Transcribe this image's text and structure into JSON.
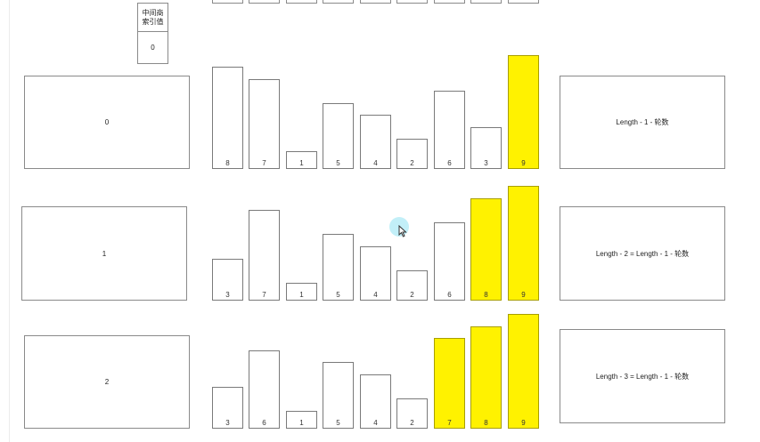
{
  "top_stub_count": 9,
  "mid_index": {
    "label": "中间商\n索引值",
    "value": "0"
  },
  "rows": [
    {
      "round": "0",
      "formula": "Length - 1 - 轮数",
      "bars": [
        {
          "value": 8,
          "label": "8",
          "highlighted": false
        },
        {
          "value": 7,
          "label": "7",
          "highlighted": false
        },
        {
          "value": 1,
          "label": "1",
          "highlighted": false
        },
        {
          "value": 5,
          "label": "5",
          "highlighted": false
        },
        {
          "value": 4,
          "label": "4",
          "highlighted": false
        },
        {
          "value": 2,
          "label": "2",
          "highlighted": false
        },
        {
          "value": 6,
          "label": "6",
          "highlighted": false
        },
        {
          "value": 3,
          "label": "3",
          "highlighted": false
        },
        {
          "value": 9,
          "label": "9",
          "highlighted": true
        }
      ]
    },
    {
      "round": "1",
      "formula": "Length - 2 = Length - 1 - 轮数",
      "bars": [
        {
          "value": 3,
          "label": "3",
          "highlighted": false
        },
        {
          "value": 7,
          "label": "7",
          "highlighted": false
        },
        {
          "value": 1,
          "label": "1",
          "highlighted": false
        },
        {
          "value": 5,
          "label": "5",
          "highlighted": false
        },
        {
          "value": 4,
          "label": "4",
          "highlighted": false
        },
        {
          "value": 2,
          "label": "2",
          "highlighted": false
        },
        {
          "value": 6,
          "label": "6",
          "highlighted": false
        },
        {
          "value": 8,
          "label": "8",
          "highlighted": true
        },
        {
          "value": 9,
          "label": "9",
          "highlighted": true
        }
      ]
    },
    {
      "round": "2",
      "formula": "Length - 3 = Length - 1 - 轮数",
      "bars": [
        {
          "value": 3,
          "label": "3",
          "highlighted": false
        },
        {
          "value": 6,
          "label": "6",
          "highlighted": false
        },
        {
          "value": 1,
          "label": "1",
          "highlighted": false
        },
        {
          "value": 5,
          "label": "5",
          "highlighted": false
        },
        {
          "value": 4,
          "label": "4",
          "highlighted": false
        },
        {
          "value": 2,
          "label": "2",
          "highlighted": false
        },
        {
          "value": 7,
          "label": "7",
          "highlighted": true
        },
        {
          "value": 8,
          "label": "8",
          "highlighted": true
        },
        {
          "value": 9,
          "label": "9",
          "highlighted": true
        }
      ]
    }
  ],
  "colors": {
    "highlight": "#fff200",
    "bar_border": "#7a7a7a",
    "box_border": "#8a8a8a"
  }
}
